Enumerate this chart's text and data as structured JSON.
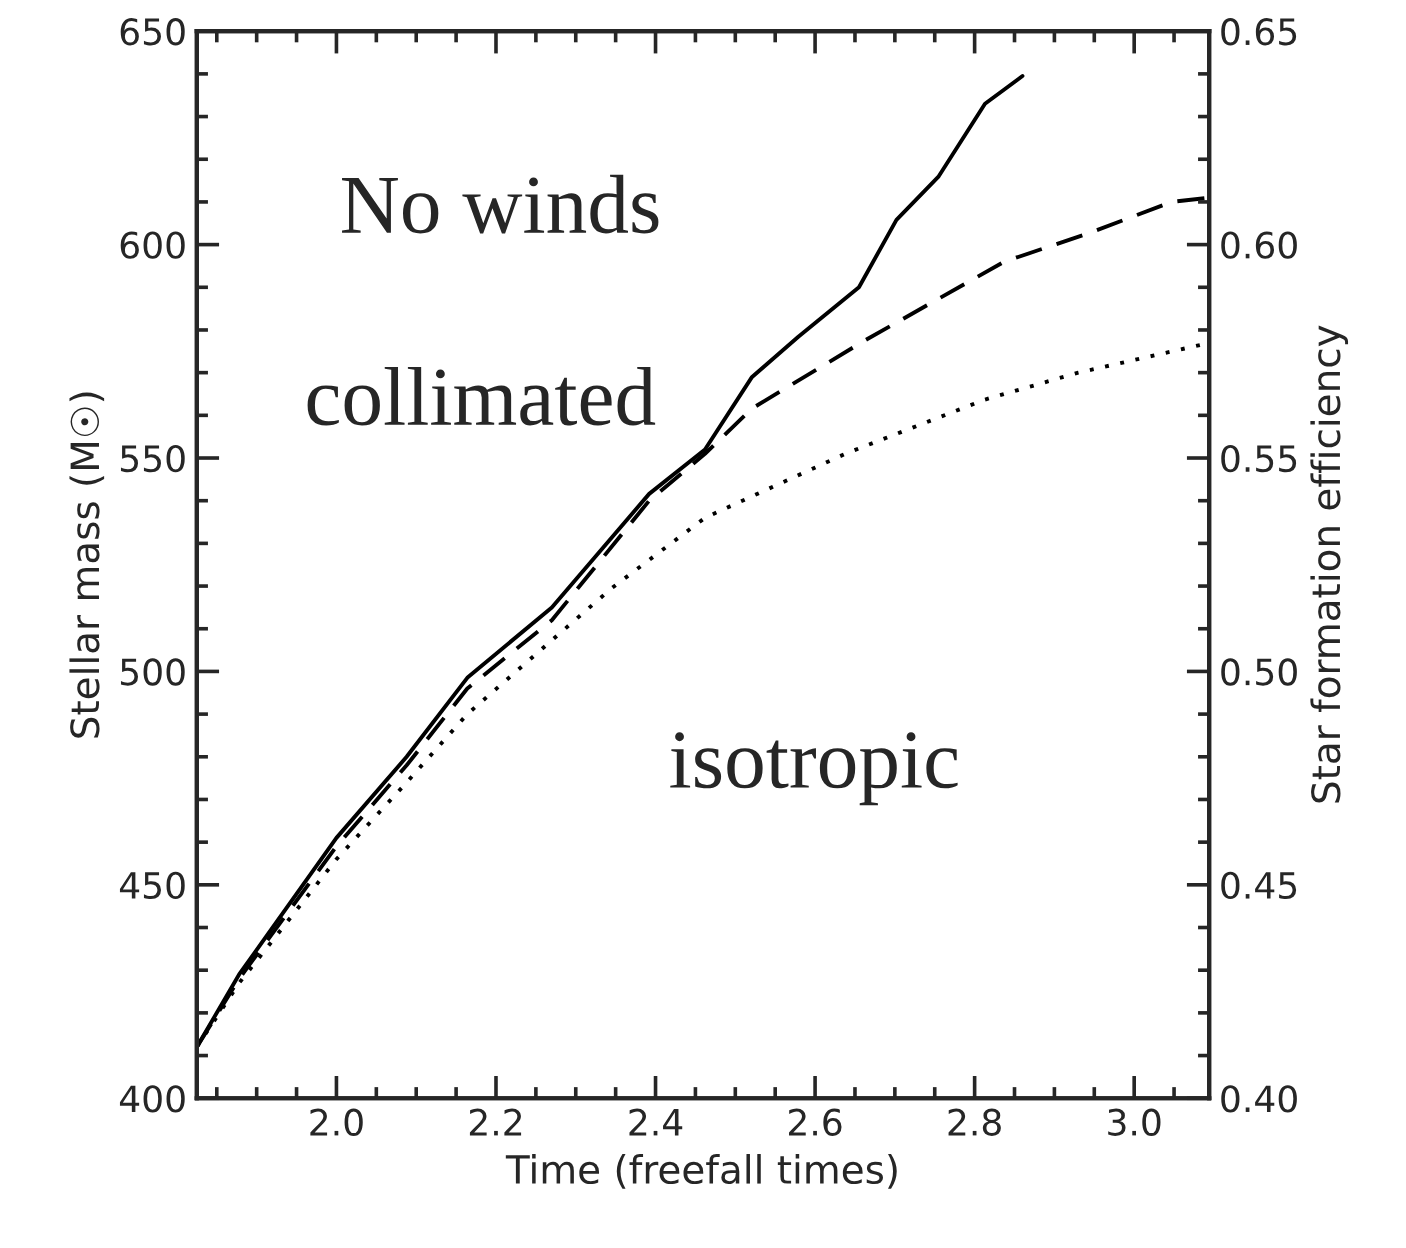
{
  "chart_data": {
    "type": "line",
    "xlabel": "Time (freefall times)",
    "ylabel": "Stellar mass (M☉)",
    "y2label": "Star formation efficiency",
    "xlim": [
      1.825,
      3.094
    ],
    "ylim": [
      400,
      650
    ],
    "y2lim": [
      0.4,
      0.65
    ],
    "xticks": [
      {
        "value": 2.0,
        "label": "2.0"
      },
      {
        "value": 2.2,
        "label": "2.2"
      },
      {
        "value": 2.4,
        "label": "2.4"
      },
      {
        "value": 2.6,
        "label": "2.6"
      },
      {
        "value": 2.8,
        "label": "2.8"
      },
      {
        "value": 3.0,
        "label": "3.0"
      }
    ],
    "yticks": [
      400,
      450,
      500,
      550,
      600,
      650
    ],
    "y2ticks": [
      {
        "value": 0.4,
        "label": "0.40"
      },
      {
        "value": 0.45,
        "label": "0.45"
      },
      {
        "value": 0.5,
        "label": "0.50"
      },
      {
        "value": 0.55,
        "label": "0.55"
      },
      {
        "value": 0.6,
        "label": "0.60"
      },
      {
        "value": 0.65,
        "label": "0.65"
      }
    ],
    "grid": false,
    "marker": "none",
    "series": [
      {
        "color": "#000000",
        "line_style": "solid",
        "x": [
          1.825,
          1.878,
          2.0,
          2.088,
          2.164,
          2.27,
          2.31,
          2.392,
          2.462,
          2.521,
          2.579,
          2.655,
          2.702,
          2.755,
          2.813,
          2.86
        ],
        "values": [
          412,
          429,
          461,
          480,
          498.5,
          515,
          523.7,
          541.6,
          552,
          569,
          578.4,
          590,
          605.8,
          616,
          633,
          639.5
        ]
      },
      {
        "color": "#000000",
        "line_style": "dashed",
        "x": [
          1.825,
          1.878,
          2.0,
          2.088,
          2.164,
          2.27,
          2.392,
          2.462,
          2.521,
          2.661,
          2.837,
          2.942,
          3.047,
          3.094
        ],
        "values": [
          412,
          428,
          459,
          478,
          496,
          512,
          540,
          551,
          561.6,
          577.4,
          596,
          602.6,
          610,
          611
        ]
      },
      {
        "color": "#000000",
        "line_style": "dotted",
        "x": [
          1.825,
          1.878,
          2.0,
          2.088,
          2.164,
          2.305,
          2.345,
          2.462,
          2.638,
          2.813,
          2.93,
          3.088
        ],
        "values": [
          412,
          427,
          456,
          474,
          490,
          513,
          519.5,
          536,
          551,
          563.7,
          570,
          576.7
        ]
      }
    ],
    "annotations": [
      "No winds",
      "collimated",
      "isotropic"
    ]
  }
}
